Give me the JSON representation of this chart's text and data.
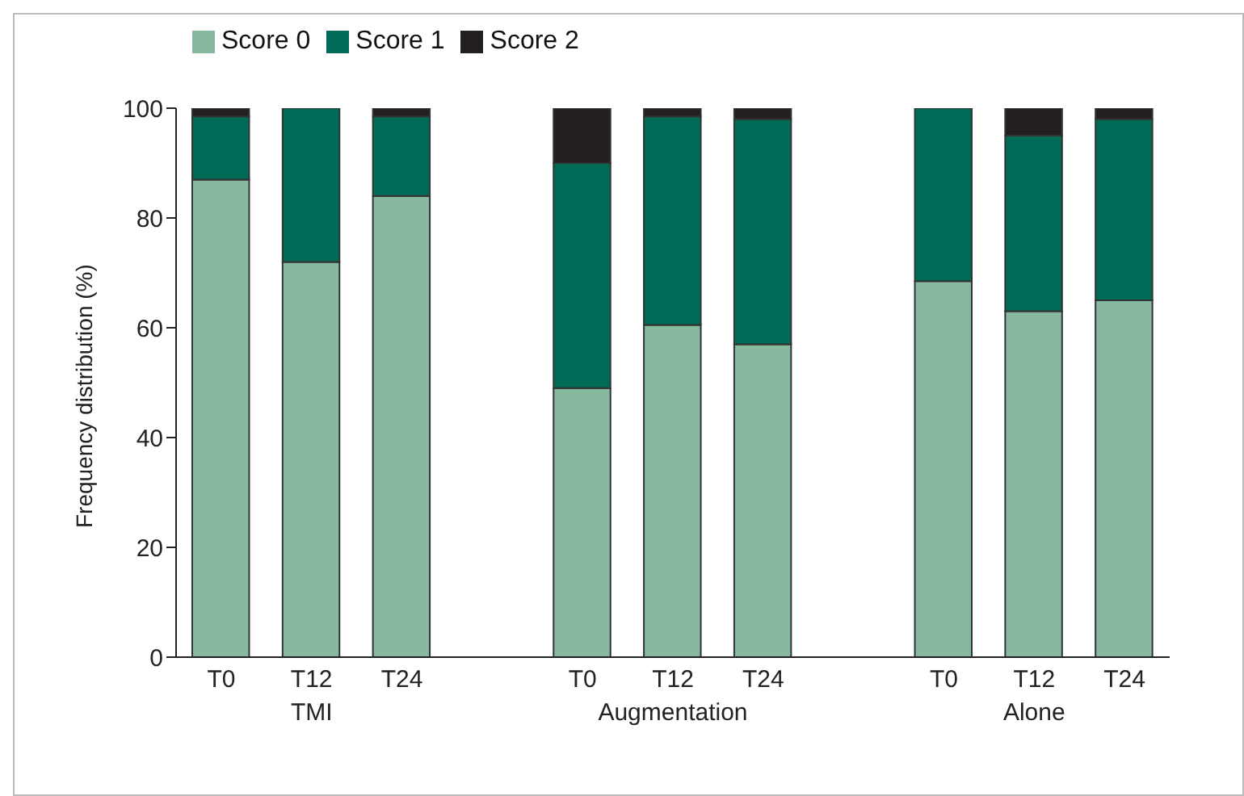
{
  "chart_data": {
    "type": "bar",
    "stacked": true,
    "ylabel": "Frequency distribution (%)",
    "categories": [
      "T0",
      "T12",
      "T24",
      null,
      "T0",
      "T12",
      "T24",
      null,
      "T0",
      "T12",
      "T24"
    ],
    "series": [
      {
        "name": "Score 0",
        "color": "#86b99e",
        "values": [
          87,
          72,
          84,
          null,
          49,
          60.5,
          57,
          null,
          68.5,
          63,
          65
        ]
      },
      {
        "name": "Score 1",
        "color": "#006b57",
        "values": [
          11.5,
          28,
          14.5,
          null,
          41,
          38,
          41,
          null,
          31.5,
          32,
          33
        ]
      },
      {
        "name": "Score 2",
        "color": "#231f20",
        "values": [
          1.5,
          0,
          1.5,
          null,
          10,
          1.5,
          2,
          null,
          0,
          5,
          2
        ]
      }
    ],
    "ylim": [
      0,
      100
    ],
    "yticks": [
      0,
      20,
      40,
      60,
      80,
      100
    ],
    "grid": false,
    "legend": "top left",
    "annotations": [
      "TMI",
      "Augmentation",
      "Alone"
    ]
  }
}
